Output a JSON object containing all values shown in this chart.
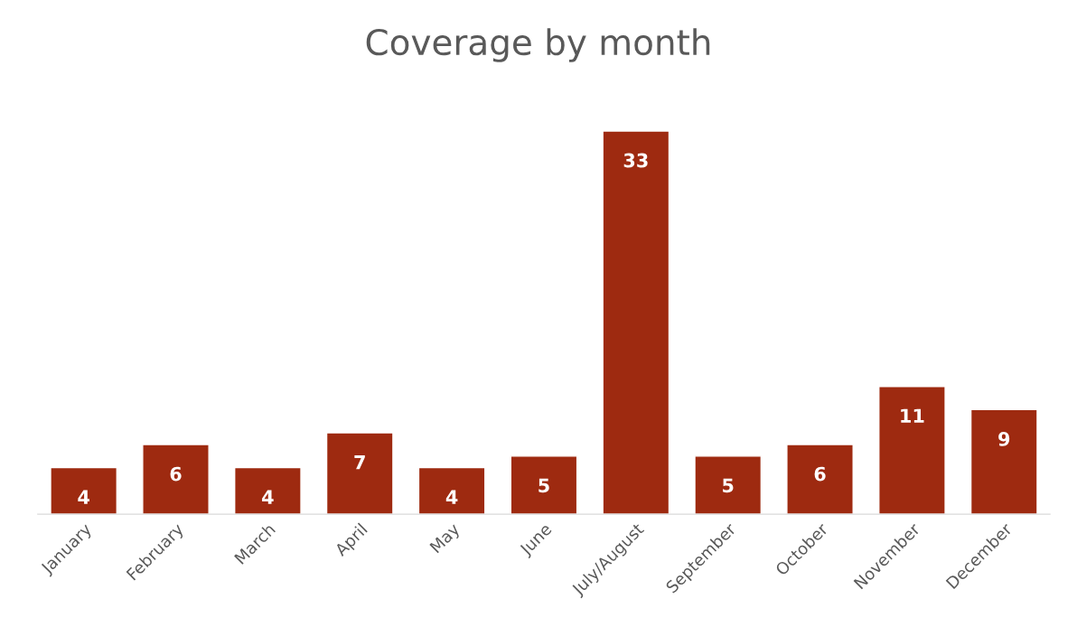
{
  "chart_data": {
    "type": "bar",
    "title": "Coverage by month",
    "categories": [
      "January",
      "February",
      "March",
      "April",
      "May",
      "June",
      "July/August",
      "September",
      "October",
      "November",
      "December"
    ],
    "values": [
      4,
      6,
      4,
      7,
      4,
      5,
      33,
      5,
      6,
      11,
      9
    ],
    "color": "#9e2a10",
    "data_labels": true,
    "grid": false,
    "legend": false
  }
}
